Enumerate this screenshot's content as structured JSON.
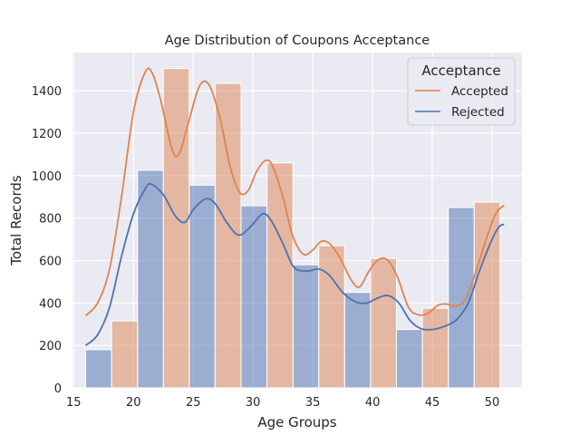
{
  "chart_data": {
    "type": "bar",
    "title": "Age Distribution of Coupons Acceptance",
    "xlabel": "Age Groups",
    "ylabel": "Total Records",
    "xlim": [
      14.9,
      52.5
    ],
    "ylim": [
      0,
      1580
    ],
    "xticks": [
      15,
      20,
      25,
      30,
      35,
      40,
      45,
      50
    ],
    "yticks": [
      0,
      200,
      400,
      600,
      800,
      1000,
      1200,
      1400
    ],
    "grid": true,
    "legend": {
      "title": "Acceptance",
      "placement": "top-right"
    },
    "bins": [
      {
        "x0": 16.0,
        "x1": 18.17
      },
      {
        "x0": 18.17,
        "x1": 20.34
      },
      {
        "x0": 20.34,
        "x1": 22.5
      },
      {
        "x0": 22.5,
        "x1": 24.66
      },
      {
        "x0": 24.66,
        "x1": 26.83
      },
      {
        "x0": 26.83,
        "x1": 29.0
      },
      {
        "x0": 29.0,
        "x1": 31.17
      },
      {
        "x0": 31.17,
        "x1": 33.34
      },
      {
        "x0": 33.34,
        "x1": 35.5
      },
      {
        "x0": 35.5,
        "x1": 37.66
      },
      {
        "x0": 37.66,
        "x1": 39.83
      },
      {
        "x0": 39.83,
        "x1": 42.0
      },
      {
        "x0": 42.0,
        "x1": 44.17
      },
      {
        "x0": 44.17,
        "x1": 46.34
      },
      {
        "x0": 46.34,
        "x1": 48.5
      },
      {
        "x0": 48.5,
        "x1": 50.66
      }
    ],
    "series": [
      {
        "name": "Rejected",
        "color": "#4c72b0",
        "values": [
          180,
          0,
          1025,
          0,
          955,
          0,
          858,
          0,
          580,
          0,
          450,
          0,
          275,
          0,
          850,
          0
        ],
        "kde": [
          [
            16.0,
            200
          ],
          [
            17.0,
            250
          ],
          [
            18.0,
            380
          ],
          [
            19.0,
            620
          ],
          [
            20.0,
            820
          ],
          [
            21.0,
            940
          ],
          [
            21.5,
            960
          ],
          [
            22.5,
            910
          ],
          [
            23.5,
            810
          ],
          [
            24.3,
            780
          ],
          [
            25.0,
            840
          ],
          [
            26.0,
            890
          ],
          [
            26.8,
            870
          ],
          [
            27.8,
            780
          ],
          [
            28.8,
            720
          ],
          [
            29.8,
            760
          ],
          [
            30.8,
            820
          ],
          [
            31.5,
            790
          ],
          [
            32.5,
            680
          ],
          [
            33.4,
            570
          ],
          [
            34.5,
            550
          ],
          [
            35.5,
            560
          ],
          [
            36.4,
            530
          ],
          [
            37.5,
            450
          ],
          [
            38.6,
            405
          ],
          [
            39.5,
            400
          ],
          [
            40.5,
            425
          ],
          [
            41.3,
            435
          ],
          [
            42.2,
            400
          ],
          [
            43.1,
            320
          ],
          [
            44.0,
            280
          ],
          [
            45.0,
            275
          ],
          [
            46.0,
            290
          ],
          [
            47.0,
            320
          ],
          [
            48.0,
            400
          ],
          [
            49.0,
            560
          ],
          [
            50.0,
            700
          ],
          [
            50.6,
            760
          ],
          [
            51.0,
            770
          ]
        ]
      },
      {
        "name": "Accepted",
        "color": "#dd8452",
        "values": [
          0,
          315,
          0,
          1505,
          0,
          1435,
          0,
          1060,
          0,
          670,
          0,
          610,
          0,
          375,
          0,
          875
        ],
        "kde": [
          [
            16.0,
            340
          ],
          [
            17.0,
            400
          ],
          [
            18.0,
            560
          ],
          [
            19.0,
            900
          ],
          [
            20.0,
            1300
          ],
          [
            21.0,
            1490
          ],
          [
            21.6,
            1480
          ],
          [
            22.3,
            1350
          ],
          [
            23.2,
            1130
          ],
          [
            23.8,
            1100
          ],
          [
            24.6,
            1250
          ],
          [
            25.5,
            1420
          ],
          [
            26.3,
            1430
          ],
          [
            27.2,
            1280
          ],
          [
            28.1,
            1040
          ],
          [
            28.9,
            920
          ],
          [
            29.6,
            930
          ],
          [
            30.3,
            1020
          ],
          [
            31.0,
            1070
          ],
          [
            31.6,
            1050
          ],
          [
            32.5,
            900
          ],
          [
            33.3,
            720
          ],
          [
            34.2,
            630
          ],
          [
            35.0,
            650
          ],
          [
            35.7,
            690
          ],
          [
            36.4,
            680
          ],
          [
            37.3,
            610
          ],
          [
            38.2,
            510
          ],
          [
            38.9,
            475
          ],
          [
            39.7,
            550
          ],
          [
            40.5,
            605
          ],
          [
            41.3,
            600
          ],
          [
            42.1,
            520
          ],
          [
            43.0,
            380
          ],
          [
            43.8,
            345
          ],
          [
            44.6,
            350
          ],
          [
            45.5,
            390
          ],
          [
            46.2,
            395
          ],
          [
            47.0,
            385
          ],
          [
            47.8,
            420
          ],
          [
            48.6,
            540
          ],
          [
            49.5,
            700
          ],
          [
            50.3,
            820
          ],
          [
            51.0,
            860
          ]
        ]
      }
    ]
  }
}
